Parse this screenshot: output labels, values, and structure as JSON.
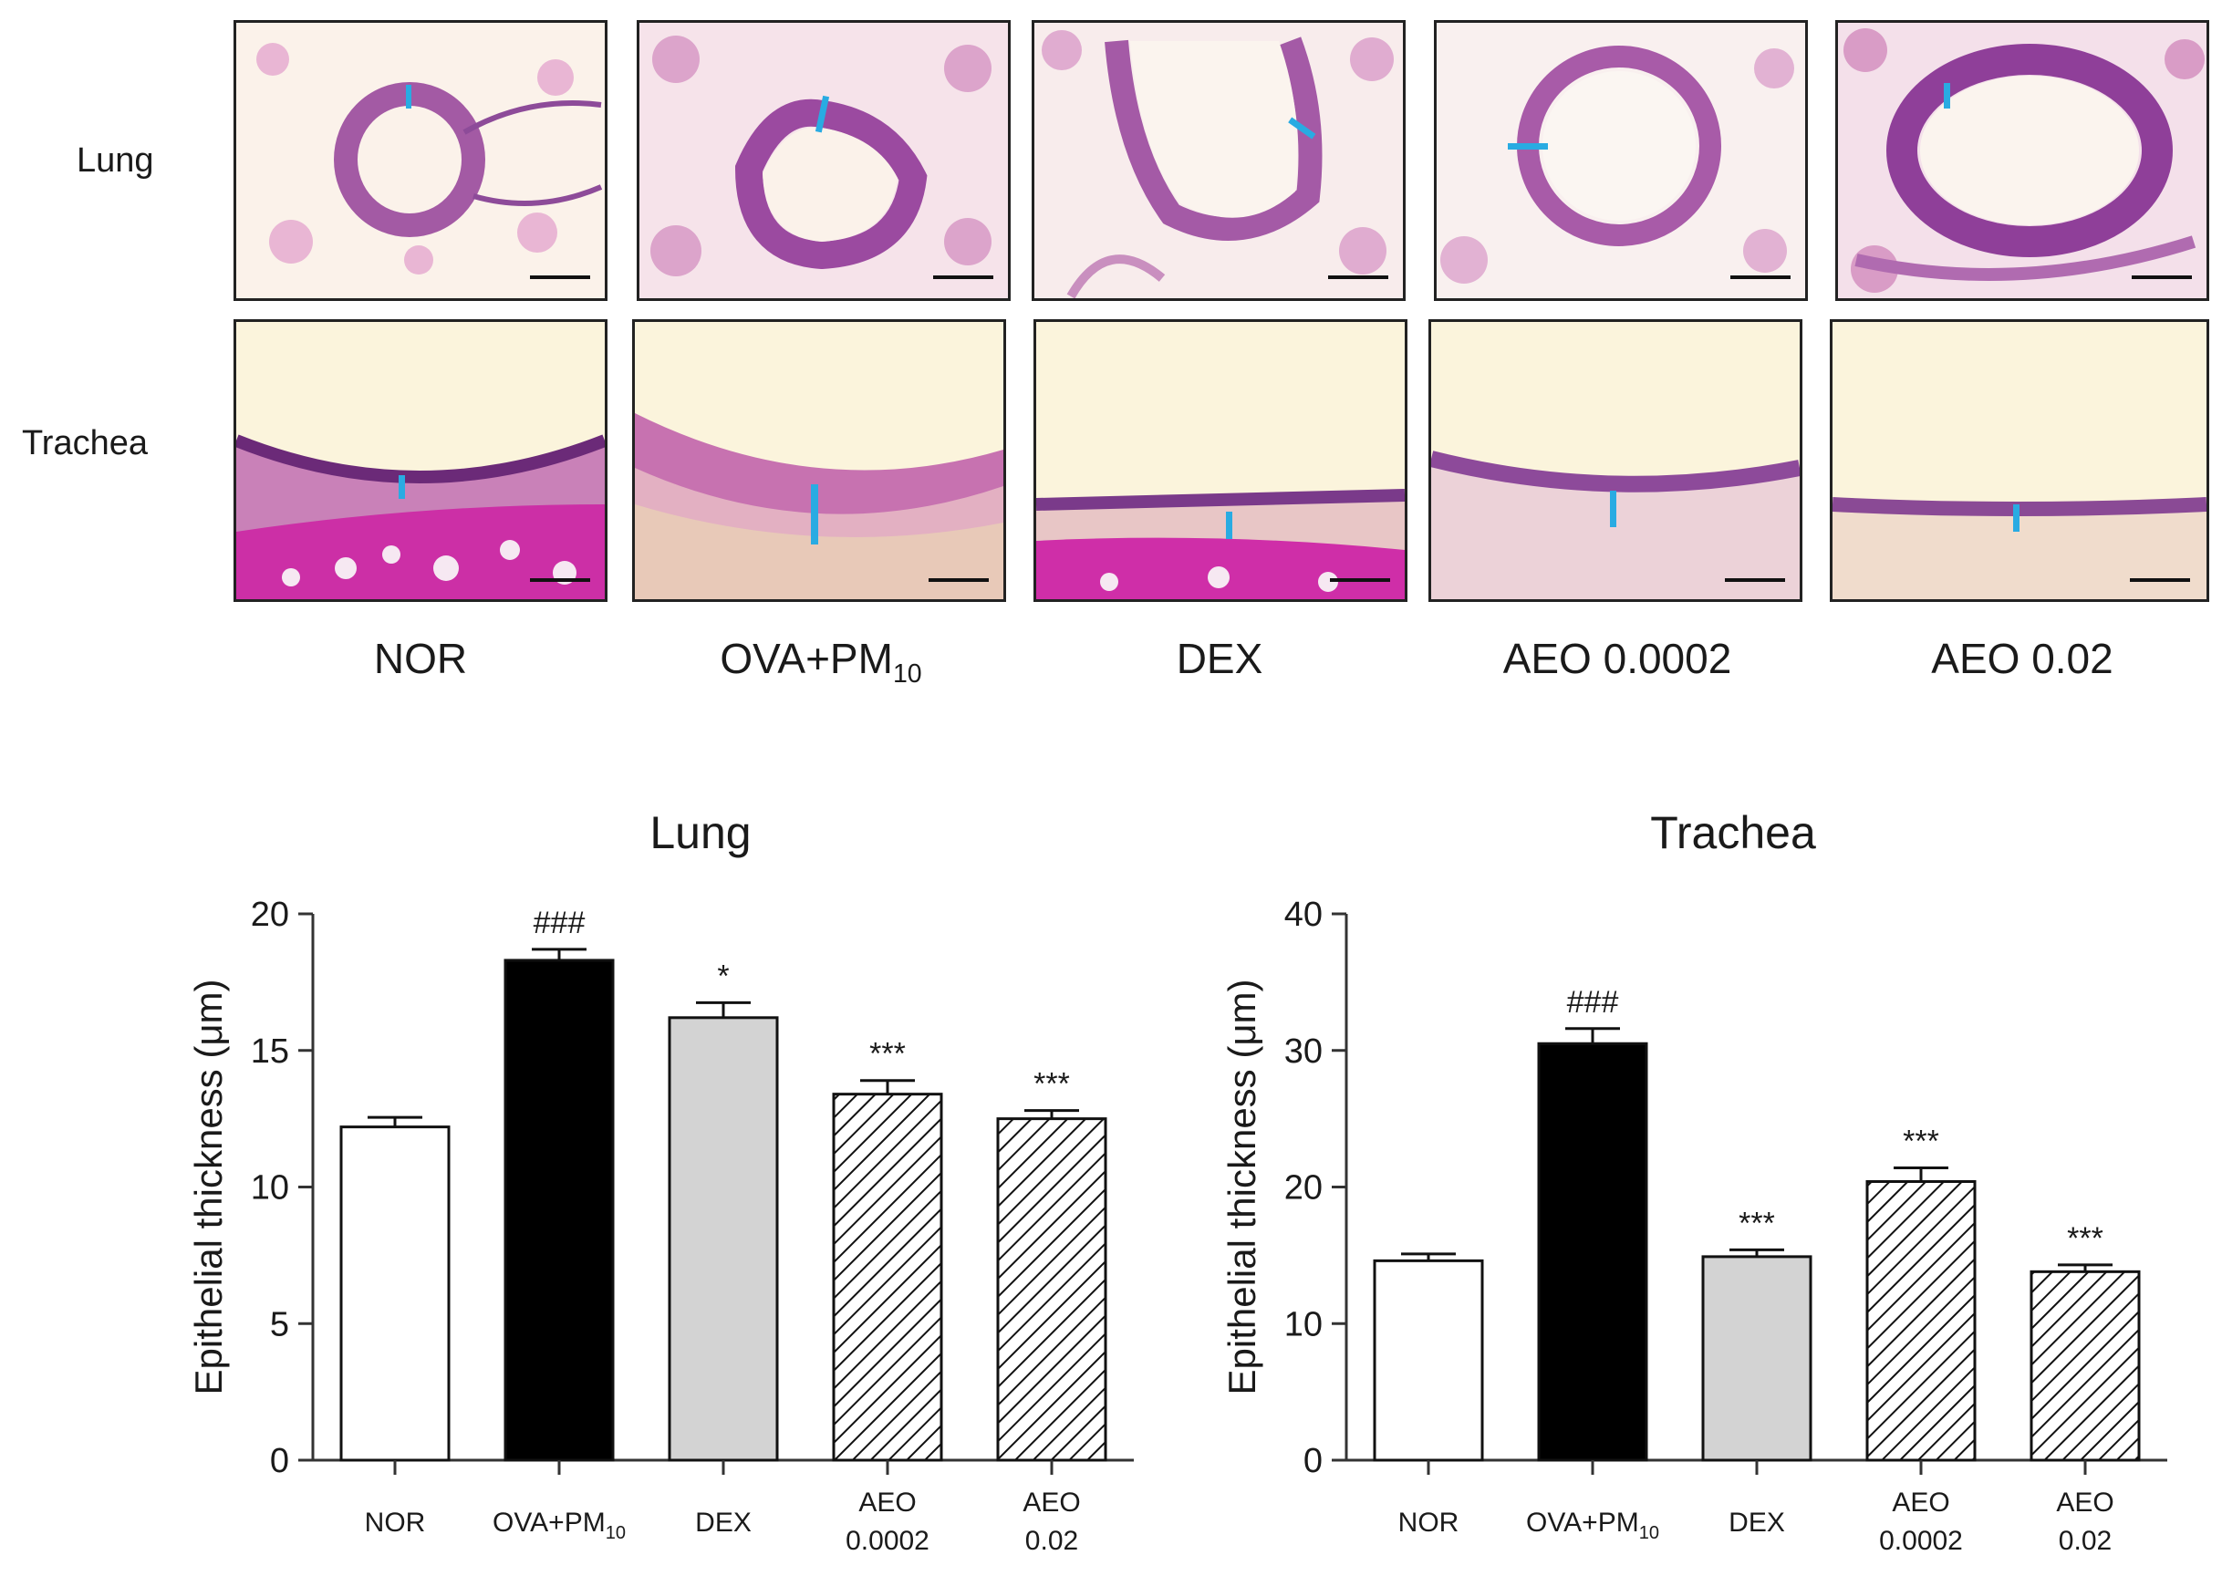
{
  "row_labels": [
    "Lung",
    "Trachea"
  ],
  "groups": [
    {
      "name": "NOR",
      "sub": ""
    },
    {
      "name": "OVA+PM",
      "sub": "10"
    },
    {
      "name": "DEX",
      "sub": ""
    },
    {
      "name": "AEO 0.0002",
      "sub": ""
    },
    {
      "name": "AEO 0.02",
      "sub": ""
    }
  ],
  "colors": {
    "bar_fill": [
      "#ffffff",
      "#000000",
      "#d3d3d3",
      "hatch",
      "hatch"
    ],
    "marker": "#29abe2"
  },
  "chart_data": [
    {
      "type": "bar",
      "title": "Lung",
      "ylabel": "Epithelial thickness (μm)",
      "xlabel": "",
      "categories": [
        [
          "NOR"
        ],
        [
          "OVA+PM",
          "10"
        ],
        [
          "DEX"
        ],
        [
          "AEO",
          "0.0002"
        ],
        [
          "AEO",
          "0.02"
        ]
      ],
      "values": [
        12.2,
        18.3,
        16.2,
        13.4,
        12.5
      ],
      "errors": [
        0.35,
        0.4,
        0.55,
        0.5,
        0.3
      ],
      "annotations": [
        "",
        "###",
        "*",
        "***",
        "***"
      ],
      "ylim": [
        0,
        20
      ],
      "yticks": [
        0,
        5,
        10,
        15,
        20
      ],
      "grid": false
    },
    {
      "type": "bar",
      "title": "Trachea",
      "ylabel": "Epithelial thickness (μm)",
      "xlabel": "",
      "categories": [
        [
          "NOR"
        ],
        [
          "OVA+PM",
          "10"
        ],
        [
          "DEX"
        ],
        [
          "AEO",
          "0.0002"
        ],
        [
          "AEO",
          "0.02"
        ]
      ],
      "values": [
        14.6,
        30.5,
        14.9,
        20.4,
        13.8
      ],
      "errors": [
        0.5,
        1.1,
        0.5,
        1.0,
        0.5
      ],
      "annotations": [
        "",
        "###",
        "***",
        "***",
        "***"
      ],
      "ylim": [
        0,
        40
      ],
      "yticks": [
        0,
        10,
        20,
        30,
        40
      ],
      "grid": false
    }
  ]
}
